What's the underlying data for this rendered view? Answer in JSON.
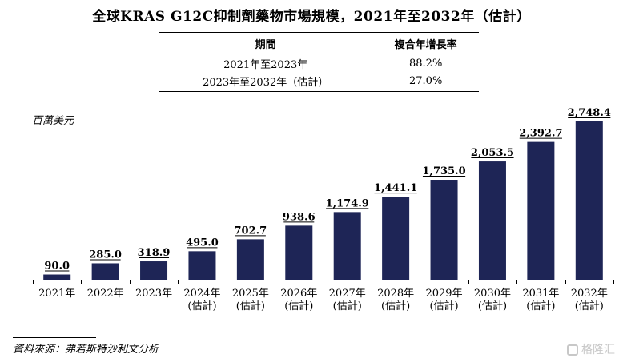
{
  "chart_data": {
    "type": "bar",
    "title": "全球KRAS G12C抑制劑藥物市場規模，2021年至2032年（估計）",
    "ylabel": "百萬美元",
    "xlabel": "",
    "categories": [
      [
        "2021年"
      ],
      [
        "2022年"
      ],
      [
        "2023年"
      ],
      [
        "2024年",
        "(估計)"
      ],
      [
        "2025年",
        "(估計)"
      ],
      [
        "2026年",
        "(估計)"
      ],
      [
        "2027年",
        "(估計)"
      ],
      [
        "2028年",
        "(估計)"
      ],
      [
        "2029年",
        "(估計)"
      ],
      [
        "2030年",
        "(估計)"
      ],
      [
        "2031年",
        "(估計)"
      ],
      [
        "2032年",
        "(估計)"
      ]
    ],
    "values": [
      90.0,
      285.0,
      318.9,
      495.0,
      702.7,
      938.6,
      1174.9,
      1441.1,
      1735.0,
      2053.5,
      2392.7,
      2748.4
    ],
    "value_labels": [
      "90.0",
      "285.0",
      "318.9",
      "495.0",
      "702.7",
      "938.6",
      "1,174.9",
      "1,441.1",
      "1,735.0",
      "2,053.5",
      "2,392.7",
      "2,748.4"
    ],
    "ylim": [
      0,
      2748.4
    ],
    "bar_color": "#1e2556",
    "grid": false
  },
  "cagr_table": {
    "headers": [
      "期間",
      "複合年增長率"
    ],
    "rows": [
      [
        "2021年至2023年",
        "88.2%"
      ],
      [
        "2023年至2032年（估計）",
        "27.0%"
      ]
    ]
  },
  "source": "資料來源：弗若斯特沙利文分析",
  "watermark": "格隆汇"
}
